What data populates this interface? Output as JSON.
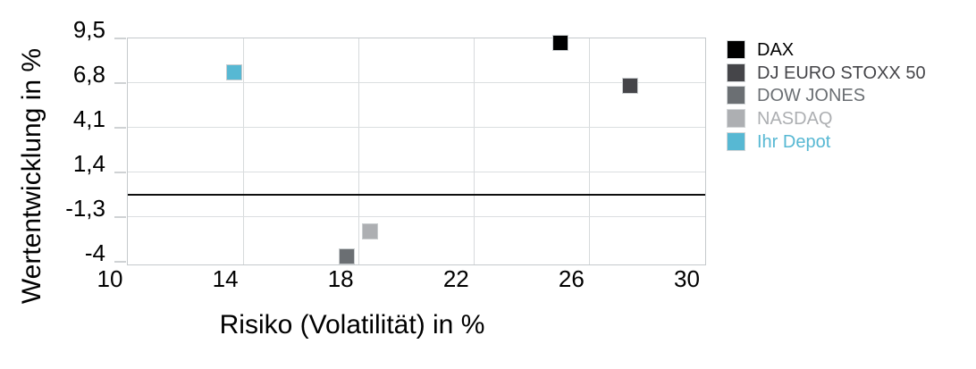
{
  "chart_data": {
    "type": "scatter",
    "title": "",
    "xlabel": "Risiko (Volatilität) in %",
    "ylabel": "Wertentwicklung in %",
    "xlim": [
      10,
      30
    ],
    "ylim": [
      -4.16,
      9.5
    ],
    "grid": true,
    "legend_position": "right",
    "zero_line": 0,
    "x_ticks": [
      {
        "v": 10,
        "label": "10"
      },
      {
        "v": 14,
        "label": "14"
      },
      {
        "v": 18,
        "label": "18"
      },
      {
        "v": 22,
        "label": "22"
      },
      {
        "v": 26,
        "label": "26"
      },
      {
        "v": 30,
        "label": "30"
      }
    ],
    "y_ticks": [
      {
        "v": 9.5,
        "label": "9,5"
      },
      {
        "v": 6.8,
        "label": "6,8"
      },
      {
        "v": 4.1,
        "label": "4,1"
      },
      {
        "v": 1.4,
        "label": "1,4"
      },
      {
        "v": -1.3,
        "label": "-1,3"
      },
      {
        "v": -4,
        "label": "-4"
      }
    ],
    "series": [
      {
        "name": "DAX",
        "color": "#000000",
        "x": 25.0,
        "y": 9.2
      },
      {
        "name": "DJ EURO STOXX 50",
        "color": "#454549",
        "x": 27.4,
        "y": 6.6
      },
      {
        "name": "DOW JONES",
        "color": "#6b6f73",
        "x": 17.6,
        "y": -3.7
      },
      {
        "name": "NASDAQ",
        "color": "#adafb2",
        "x": 18.4,
        "y": -2.2
      },
      {
        "name": "Ihr Depot",
        "color": "#57b8d3",
        "x": 13.7,
        "y": 7.4
      }
    ]
  }
}
